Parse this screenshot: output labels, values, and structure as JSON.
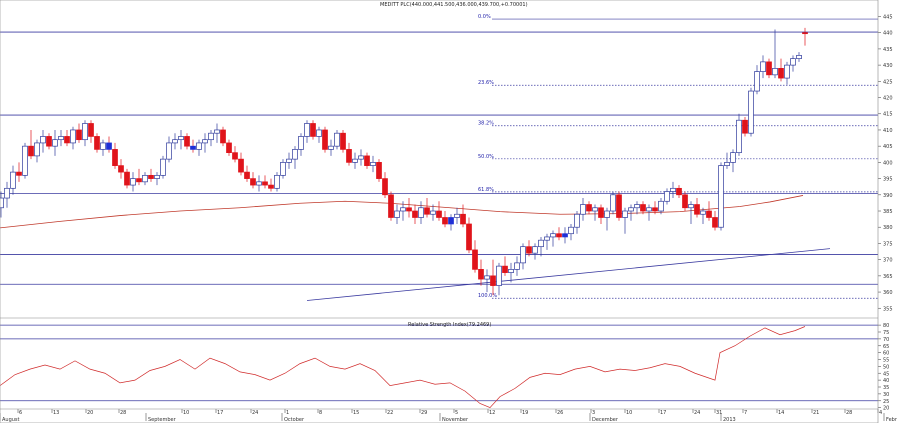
{
  "chart_data": {
    "type": "candlestick",
    "title": "MEDITT PLC(440.000,441.500,436.000,439.700,+0.70001)",
    "price_axis": {
      "ticks": [
        445,
        440,
        435,
        430,
        425,
        420,
        415,
        410,
        405,
        400,
        395,
        390,
        385,
        380,
        375,
        370,
        365,
        360,
        355
      ],
      "range": [
        352,
        447
      ]
    },
    "date_axis": {
      "day_labels": [
        "6",
        "13",
        "20",
        "28",
        "10",
        "17",
        "24",
        "1",
        "8",
        "15",
        "22",
        "29",
        "5",
        "12",
        "19",
        "26",
        "3",
        "10",
        "17",
        "24",
        "31",
        "7",
        "14",
        "21",
        "28",
        "4"
      ],
      "month_labels": [
        "August",
        "September",
        "October",
        "November",
        "December",
        "2013",
        "Febr"
      ]
    },
    "fibonacci": [
      {
        "label": "0.0%",
        "value": 444.2
      },
      {
        "label": "23.6%",
        "value": 423.8
      },
      {
        "label": "38.2%",
        "value": 411.3
      },
      {
        "label": "50.0%",
        "value": 401.1
      },
      {
        "label": "61.8%",
        "value": 390.9
      },
      {
        "label": "100.0%",
        "value": 358.1
      }
    ],
    "horizontal_levels": [
      440.2,
      414.6,
      390.4,
      371.6,
      362.4
    ],
    "ma_curve": [
      [
        0,
        379.8
      ],
      [
        60,
        381.8
      ],
      [
        120,
        383.6
      ],
      [
        180,
        385.0
      ],
      [
        240,
        386.0
      ],
      [
        300,
        387.4
      ],
      [
        345,
        388.0
      ],
      [
        390,
        387.4
      ],
      [
        450,
        386.0
      ],
      [
        500,
        384.8
      ],
      [
        560,
        384.0
      ],
      [
        620,
        384.2
      ],
      [
        680,
        384.8
      ],
      [
        740,
        386.4
      ],
      [
        770,
        387.8
      ],
      [
        803,
        389.8
      ]
    ],
    "trendline": [
      [
        307,
        357.4
      ],
      [
        830,
        373.4
      ]
    ],
    "ohlc": [
      [
        1,
        386,
        391,
        383,
        389
      ],
      [
        7,
        389,
        394,
        386,
        392
      ],
      [
        13,
        392,
        399,
        390,
        397
      ],
      [
        19,
        397,
        400,
        394,
        396
      ],
      [
        25,
        396,
        406,
        395,
        405
      ],
      [
        31,
        405,
        410,
        401,
        402
      ],
      [
        37,
        402,
        407,
        400,
        406
      ],
      [
        43,
        406,
        410,
        403,
        408
      ],
      [
        49,
        408,
        409,
        404,
        405
      ],
      [
        55,
        405,
        410,
        402,
        407
      ],
      [
        61,
        407,
        410,
        405,
        408
      ],
      [
        67,
        408,
        410,
        405,
        406
      ],
      [
        73,
        406,
        411,
        404,
        410
      ],
      [
        79,
        410,
        412,
        406,
        407
      ],
      [
        85,
        407,
        413,
        405,
        412
      ],
      [
        91,
        412,
        413,
        406,
        408
      ],
      [
        97,
        408,
        409,
        403,
        404
      ],
      [
        103,
        404,
        407,
        402,
        406
      ],
      [
        109,
        406,
        408,
        403,
        404,
        "blue"
      ],
      [
        115,
        404,
        406,
        398,
        399
      ],
      [
        121,
        399,
        401,
        395,
        397
      ],
      [
        127,
        397,
        398,
        392,
        393
      ],
      [
        133,
        393,
        397,
        391,
        395
      ],
      [
        139,
        395,
        398,
        393,
        394
      ],
      [
        145,
        394,
        397,
        393,
        396
      ],
      [
        151,
        396,
        398,
        394,
        395
      ],
      [
        157,
        395,
        397,
        393,
        396
      ],
      [
        163,
        396,
        402,
        395,
        401
      ],
      [
        169,
        401,
        408,
        400,
        406
      ],
      [
        175,
        406,
        409,
        404,
        407
      ],
      [
        181,
        407,
        410,
        404,
        408
      ],
      [
        187,
        408,
        409,
        404,
        405
      ],
      [
        193,
        405,
        407,
        403,
        404,
        "blue"
      ],
      [
        199,
        404,
        407,
        402,
        406
      ],
      [
        205,
        406,
        409,
        403,
        407
      ],
      [
        211,
        407,
        410,
        405,
        409
      ],
      [
        217,
        409,
        412,
        406,
        410
      ],
      [
        223,
        410,
        411,
        405,
        406
      ],
      [
        229,
        406,
        407,
        402,
        403
      ],
      [
        235,
        403,
        405,
        400,
        401
      ],
      [
        241,
        401,
        403,
        396,
        397
      ],
      [
        247,
        397,
        399,
        394,
        395
      ],
      [
        253,
        395,
        397,
        392,
        393
      ],
      [
        259,
        393,
        396,
        391,
        394
      ],
      [
        265,
        394,
        396,
        392,
        393
      ],
      [
        271,
        393,
        395,
        391,
        392
      ],
      [
        277,
        392,
        397,
        391,
        396
      ],
      [
        283,
        396,
        401,
        395,
        400
      ],
      [
        289,
        400,
        403,
        398,
        401
      ],
      [
        295,
        401,
        405,
        398,
        404
      ],
      [
        301,
        404,
        409,
        402,
        408
      ],
      [
        307,
        408,
        413,
        406,
        412
      ],
      [
        313,
        412,
        413,
        407,
        408
      ],
      [
        319,
        408,
        411,
        406,
        410
      ],
      [
        325,
        410,
        411,
        403,
        404
      ],
      [
        331,
        404,
        407,
        402,
        405
      ],
      [
        337,
        405,
        410,
        404,
        409
      ],
      [
        343,
        409,
        410,
        403,
        404
      ],
      [
        349,
        404,
        406,
        399,
        400
      ],
      [
        355,
        400,
        403,
        398,
        401
      ],
      [
        361,
        401,
        404,
        399,
        402
      ],
      [
        367,
        402,
        403,
        398,
        399
      ],
      [
        373,
        399,
        402,
        397,
        400
      ],
      [
        379,
        400,
        401,
        394,
        395
      ],
      [
        385,
        395,
        397,
        389,
        390
      ],
      [
        391,
        390,
        391,
        382,
        383
      ],
      [
        397,
        383,
        387,
        381,
        385
      ],
      [
        403,
        385,
        388,
        382,
        386
      ],
      [
        409,
        386,
        389,
        383,
        385
      ],
      [
        415,
        385,
        387,
        381,
        383
      ],
      [
        421,
        383,
        388,
        381,
        386
      ],
      [
        427,
        386,
        389,
        383,
        384
      ],
      [
        433,
        384,
        387,
        382,
        385
      ],
      [
        439,
        385,
        388,
        382,
        383
      ],
      [
        445,
        383,
        385,
        380,
        381
      ],
      [
        451,
        381,
        384,
        379,
        383,
        "blue"
      ],
      [
        457,
        383,
        386,
        381,
        384
      ],
      [
        463,
        384,
        387,
        380,
        381
      ],
      [
        469,
        381,
        383,
        372,
        373
      ],
      [
        475,
        373,
        376,
        366,
        367
      ],
      [
        481,
        367,
        370,
        362,
        364
      ],
      [
        487,
        364,
        367,
        360,
        365
      ],
      [
        493,
        365,
        370,
        359,
        362
      ],
      [
        499,
        362,
        369,
        359,
        368
      ],
      [
        505,
        368,
        371,
        365,
        366
      ],
      [
        511,
        366,
        369,
        363,
        367
      ],
      [
        517,
        367,
        371,
        365,
        369
      ],
      [
        523,
        369,
        375,
        367,
        374
      ],
      [
        529,
        374,
        376,
        371,
        372
      ],
      [
        535,
        372,
        375,
        370,
        374
      ],
      [
        541,
        374,
        377,
        371,
        376
      ],
      [
        547,
        376,
        378,
        373,
        377
      ],
      [
        553,
        377,
        379,
        374,
        378
      ],
      [
        559,
        378,
        380,
        376,
        377
      ],
      [
        565,
        377,
        380,
        375,
        378,
        "blue"
      ],
      [
        571,
        378,
        381,
        376,
        380
      ],
      [
        577,
        380,
        385,
        378,
        384
      ],
      [
        583,
        384,
        389,
        382,
        387
      ],
      [
        589,
        387,
        388,
        384,
        385
      ],
      [
        595,
        385,
        387,
        382,
        386
      ],
      [
        601,
        386,
        387,
        381,
        383
      ],
      [
        607,
        383,
        386,
        379,
        385
      ],
      [
        613,
        385,
        391,
        384,
        390
      ],
      [
        619,
        390,
        391,
        382,
        383
      ],
      [
        625,
        383,
        386,
        378,
        385
      ],
      [
        631,
        385,
        387,
        382,
        386
      ],
      [
        637,
        386,
        388,
        384,
        387
      ],
      [
        643,
        387,
        388,
        384,
        385
      ],
      [
        649,
        385,
        387,
        382,
        386
      ],
      [
        655,
        386,
        388,
        384,
        385
      ],
      [
        661,
        385,
        389,
        384,
        388
      ],
      [
        667,
        388,
        392,
        387,
        391
      ],
      [
        673,
        391,
        394,
        389,
        392
      ],
      [
        679,
        392,
        393,
        389,
        390
      ],
      [
        685,
        390,
        391,
        385,
        386
      ],
      [
        691,
        386,
        388,
        381,
        387
      ],
      [
        697,
        387,
        389,
        383,
        384
      ],
      [
        703,
        384,
        386,
        381,
        385
      ],
      [
        709,
        385,
        388,
        382,
        383
      ],
      [
        715,
        383,
        385,
        379,
        380
      ],
      [
        721,
        380,
        400,
        379,
        399
      ],
      [
        727,
        399,
        403,
        398,
        400
      ],
      [
        733,
        400,
        404,
        397,
        403
      ],
      [
        739,
        403,
        415,
        402,
        413
      ],
      [
        745,
        413,
        414,
        408,
        409
      ],
      [
        751,
        409,
        423,
        408,
        422
      ],
      [
        757,
        422,
        430,
        421,
        428
      ],
      [
        763,
        428,
        433,
        426,
        431
      ],
      [
        769,
        431,
        432,
        426,
        427
      ],
      [
        775,
        427,
        441,
        426,
        429
      ],
      [
        781,
        429,
        432,
        425,
        426
      ],
      [
        787,
        426,
        431,
        424,
        430
      ],
      [
        793,
        430,
        433,
        428,
        432
      ],
      [
        799,
        432,
        434,
        431,
        433
      ],
      [
        805,
        440,
        441.5,
        436,
        439.7
      ]
    ],
    "rsi": {
      "label": "Relative Strength Index(79.2469)",
      "ticks": [
        80,
        75,
        70,
        65,
        60,
        55,
        50,
        45,
        40,
        35,
        30,
        25,
        20
      ],
      "range": [
        19,
        83
      ],
      "levels": [
        80,
        70,
        25
      ],
      "values": [
        [
          0,
          36
        ],
        [
          15,
          44
        ],
        [
          30,
          48
        ],
        [
          45,
          51
        ],
        [
          60,
          48
        ],
        [
          75,
          54
        ],
        [
          90,
          48
        ],
        [
          105,
          45
        ],
        [
          120,
          38
        ],
        [
          135,
          40
        ],
        [
          150,
          47
        ],
        [
          165,
          50
        ],
        [
          180,
          55
        ],
        [
          195,
          48
        ],
        [
          210,
          56
        ],
        [
          225,
          52
        ],
        [
          240,
          46
        ],
        [
          255,
          44
        ],
        [
          270,
          40
        ],
        [
          285,
          45
        ],
        [
          300,
          52
        ],
        [
          315,
          56
        ],
        [
          330,
          50
        ],
        [
          345,
          48
        ],
        [
          360,
          52
        ],
        [
          375,
          47
        ],
        [
          390,
          36
        ],
        [
          405,
          38
        ],
        [
          420,
          40
        ],
        [
          435,
          37
        ],
        [
          450,
          38
        ],
        [
          465,
          32
        ],
        [
          480,
          23
        ],
        [
          490,
          20
        ],
        [
          500,
          28
        ],
        [
          515,
          34
        ],
        [
          530,
          42
        ],
        [
          545,
          45
        ],
        [
          560,
          44
        ],
        [
          575,
          48
        ],
        [
          590,
          50
        ],
        [
          605,
          46
        ],
        [
          620,
          48
        ],
        [
          635,
          47
        ],
        [
          650,
          49
        ],
        [
          665,
          52
        ],
        [
          680,
          50
        ],
        [
          695,
          45
        ],
        [
          715,
          40
        ],
        [
          720,
          60
        ],
        [
          735,
          65
        ],
        [
          750,
          72
        ],
        [
          765,
          78
        ],
        [
          780,
          73
        ],
        [
          795,
          76
        ],
        [
          805,
          79
        ]
      ]
    }
  }
}
